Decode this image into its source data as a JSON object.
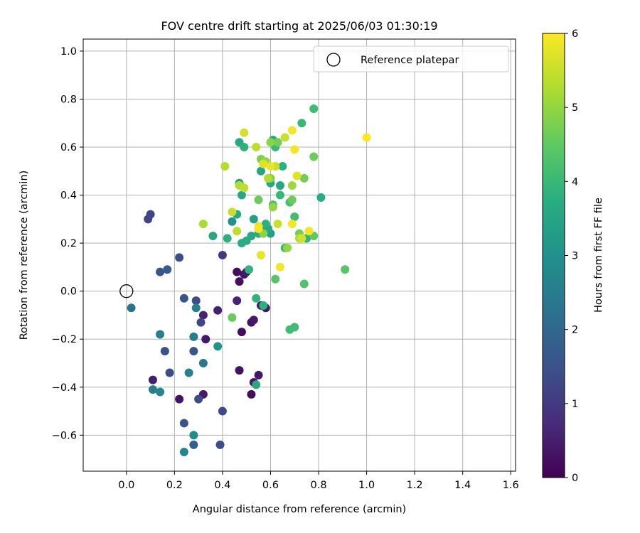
{
  "chart_data": {
    "type": "scatter",
    "title": "FOV centre drift starting at 2025/06/03 01:30:19",
    "xlabel": "Angular distance from reference (arcmin)",
    "ylabel": "Rotation from reference (arcmin)",
    "xlim": [
      -0.18,
      1.62
    ],
    "ylim": [
      -0.75,
      1.05
    ],
    "x_ticks": [
      0.0,
      0.2,
      0.4,
      0.6,
      0.8,
      1.0,
      1.2,
      1.4,
      1.6
    ],
    "x_tick_labels": [
      "0.0",
      "0.2",
      "0.4",
      "0.6",
      "0.8",
      "1.0",
      "1.2",
      "1.4",
      "1.6"
    ],
    "y_ticks": [
      -0.6,
      -0.4,
      -0.2,
      0.0,
      0.2,
      0.4,
      0.6,
      0.8,
      1.0
    ],
    "y_tick_labels": [
      "−0.6",
      "−0.4",
      "−0.2",
      "0.0",
      "0.2",
      "0.4",
      "0.6",
      "0.8",
      "1.0"
    ],
    "grid": true,
    "legend": {
      "position": "top-right",
      "label": "Reference platepar"
    },
    "reference_point": {
      "x": 0.0,
      "y": 0.0
    },
    "colorbar": {
      "label": "Hours from first FF file",
      "min": 0,
      "max": 6,
      "ticks": [
        0,
        1,
        2,
        3,
        4,
        5,
        6
      ],
      "tick_labels": [
        "0",
        "1",
        "2",
        "3",
        "4",
        "5",
        "6"
      ],
      "colormap": "viridis"
    },
    "points": [
      [
        0.46,
        0.08,
        0.2
      ],
      [
        0.47,
        0.04,
        0.25
      ],
      [
        0.49,
        0.07,
        0.3
      ],
      [
        0.5,
        0.08,
        0.45
      ],
      [
        0.52,
        -0.13,
        0.3
      ],
      [
        0.53,
        -0.12,
        0.4
      ],
      [
        0.48,
        -0.17,
        0.2
      ],
      [
        0.46,
        -0.04,
        0.6
      ],
      [
        0.56,
        -0.06,
        0.45
      ],
      [
        0.58,
        -0.07,
        0.35
      ],
      [
        0.47,
        -0.33,
        0.3
      ],
      [
        0.52,
        -0.43,
        0.2
      ],
      [
        0.53,
        -0.38,
        0.35
      ],
      [
        0.55,
        -0.35,
        0.4
      ],
      [
        0.32,
        -0.43,
        0.45
      ],
      [
        0.22,
        -0.45,
        0.3
      ],
      [
        0.11,
        -0.37,
        0.5
      ],
      [
        0.33,
        -0.2,
        0.4
      ],
      [
        0.32,
        -0.1,
        0.6
      ],
      [
        0.38,
        -0.08,
        0.5
      ],
      [
        0.4,
        0.15,
        1.0
      ],
      [
        0.22,
        0.14,
        1.4
      ],
      [
        0.09,
        0.3,
        1.2
      ],
      [
        0.1,
        0.32,
        1.2
      ],
      [
        0.14,
        0.08,
        1.5
      ],
      [
        0.17,
        0.09,
        1.7
      ],
      [
        0.24,
        -0.03,
        1.6
      ],
      [
        0.29,
        -0.04,
        1.4
      ],
      [
        0.31,
        -0.13,
        1.3
      ],
      [
        0.28,
        -0.25,
        1.6
      ],
      [
        0.16,
        -0.25,
        1.5
      ],
      [
        0.18,
        -0.34,
        1.4
      ],
      [
        0.3,
        -0.45,
        1.4
      ],
      [
        0.24,
        -0.55,
        1.5
      ],
      [
        0.4,
        -0.5,
        1.3
      ],
      [
        0.39,
        -0.64,
        1.4
      ],
      [
        0.28,
        -0.64,
        1.8
      ],
      [
        0.02,
        -0.07,
        2.3
      ],
      [
        0.14,
        -0.18,
        2.6
      ],
      [
        0.11,
        -0.41,
        2.5
      ],
      [
        0.14,
        -0.42,
        2.7
      ],
      [
        0.26,
        -0.34,
        2.6
      ],
      [
        0.28,
        -0.19,
        2.5
      ],
      [
        0.29,
        -0.07,
        2.6
      ],
      [
        0.32,
        -0.3,
        2.4
      ],
      [
        0.28,
        -0.6,
        2.9
      ],
      [
        0.24,
        -0.67,
        2.7
      ],
      [
        0.38,
        -0.23,
        3.1
      ],
      [
        0.36,
        0.23,
        3.6
      ],
      [
        0.42,
        0.22,
        3.8
      ],
      [
        0.44,
        0.29,
        3.0
      ],
      [
        0.46,
        0.32,
        3.6
      ],
      [
        0.47,
        0.45,
        3.4
      ],
      [
        0.48,
        0.4,
        3.6
      ],
      [
        0.47,
        0.62,
        3.6
      ],
      [
        0.49,
        0.6,
        3.8
      ],
      [
        0.48,
        0.2,
        3.7
      ],
      [
        0.5,
        0.21,
        3.7
      ],
      [
        0.52,
        0.23,
        3.6
      ],
      [
        0.53,
        0.3,
        3.4
      ],
      [
        0.55,
        0.24,
        3.7
      ],
      [
        0.57,
        0.26,
        3.5
      ],
      [
        0.59,
        0.26,
        3.6
      ],
      [
        0.6,
        0.24,
        3.4
      ],
      [
        0.58,
        0.28,
        3.8
      ],
      [
        0.56,
        0.5,
        3.5
      ],
      [
        0.6,
        0.45,
        3.6
      ],
      [
        0.61,
        0.63,
        3.7
      ],
      [
        0.62,
        0.6,
        4.0
      ],
      [
        0.64,
        0.44,
        3.6
      ],
      [
        0.65,
        0.52,
        3.8
      ],
      [
        0.61,
        0.36,
        4.2
      ],
      [
        0.64,
        0.4,
        4.0
      ],
      [
        0.66,
        0.18,
        4.0
      ],
      [
        0.68,
        0.37,
        4.2
      ],
      [
        0.7,
        0.31,
        4.1
      ],
      [
        0.73,
        0.7,
        4.0
      ],
      [
        0.78,
        0.76,
        4.1
      ],
      [
        0.81,
        0.39,
        3.7
      ],
      [
        0.75,
        0.22,
        3.9
      ],
      [
        0.51,
        0.09,
        3.9
      ],
      [
        0.54,
        -0.03,
        3.9
      ],
      [
        0.57,
        -0.06,
        3.8
      ],
      [
        0.54,
        -0.39,
        3.6
      ],
      [
        0.68,
        -0.16,
        4.1
      ],
      [
        0.7,
        -0.15,
        4.1
      ],
      [
        0.44,
        -0.11,
        4.6
      ],
      [
        0.62,
        0.05,
        4.4
      ],
      [
        0.74,
        0.03,
        4.3
      ],
      [
        0.91,
        0.09,
        4.4
      ],
      [
        0.78,
        0.23,
        4.5
      ],
      [
        0.72,
        0.24,
        4.7
      ],
      [
        0.69,
        0.38,
        4.6
      ],
      [
        0.74,
        0.47,
        4.7
      ],
      [
        0.78,
        0.56,
        4.6
      ],
      [
        0.63,
        0.62,
        4.7
      ],
      [
        0.6,
        0.62,
        4.9
      ],
      [
        0.6,
        0.47,
        4.8
      ],
      [
        0.55,
        0.38,
        4.6
      ],
      [
        0.56,
        0.55,
        4.8
      ],
      [
        0.58,
        0.54,
        5.0
      ],
      [
        0.55,
        0.26,
        5.0
      ],
      [
        0.57,
        0.24,
        4.9
      ],
      [
        0.61,
        0.35,
        5.0
      ],
      [
        0.67,
        0.18,
        5.0
      ],
      [
        0.69,
        0.44,
        5.1
      ],
      [
        0.72,
        0.22,
        5.3
      ],
      [
        0.32,
        0.28,
        5.2
      ],
      [
        0.41,
        0.52,
        5.3
      ],
      [
        0.44,
        0.33,
        5.5
      ],
      [
        0.46,
        0.25,
        5.4
      ],
      [
        0.47,
        0.44,
        5.3
      ],
      [
        0.49,
        0.43,
        5.4
      ],
      [
        0.54,
        0.6,
        5.4
      ],
      [
        0.59,
        0.47,
        5.3
      ],
      [
        0.62,
        0.52,
        5.5
      ],
      [
        0.63,
        0.28,
        5.5
      ],
      [
        0.66,
        0.64,
        5.5
      ],
      [
        0.71,
        0.48,
        5.7
      ],
      [
        0.73,
        0.22,
        5.6
      ],
      [
        0.49,
        0.66,
        5.6
      ],
      [
        0.55,
        0.27,
        5.8
      ],
      [
        0.55,
        0.26,
        5.9
      ],
      [
        0.56,
        0.15,
        5.8
      ],
      [
        0.57,
        0.53,
        5.7
      ],
      [
        0.6,
        0.52,
        5.8
      ],
      [
        0.64,
        0.1,
        5.9
      ],
      [
        0.69,
        0.28,
        5.9
      ],
      [
        0.69,
        0.67,
        5.9
      ],
      [
        0.7,
        0.59,
        5.9
      ],
      [
        0.76,
        0.25,
        5.9
      ],
      [
        1.0,
        0.64,
        6.0
      ]
    ]
  }
}
